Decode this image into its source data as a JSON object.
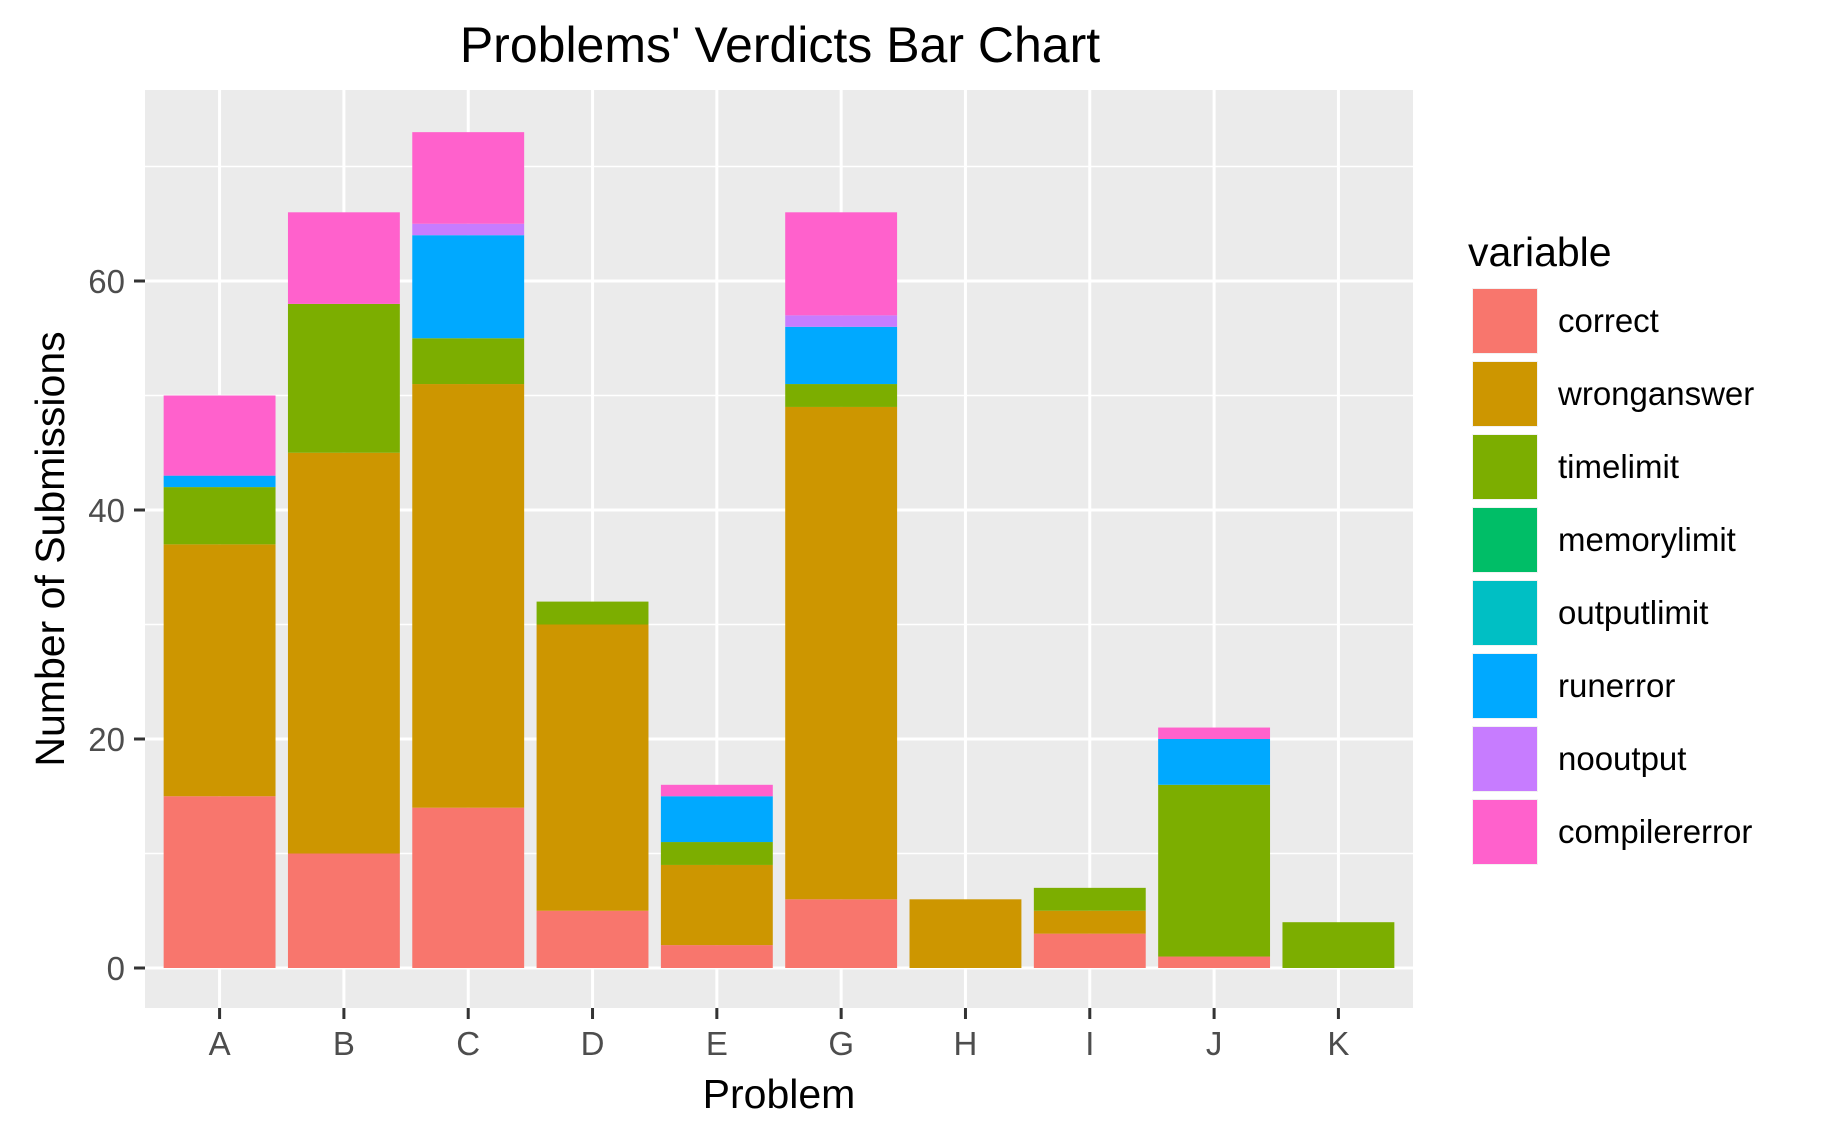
{
  "chart_data": {
    "type": "bar",
    "stacked": true,
    "title": "Problems' Verdicts Bar Chart",
    "xlabel": "Problem",
    "ylabel": "Number of Submissions",
    "categories": [
      "A",
      "B",
      "C",
      "D",
      "E",
      "G",
      "H",
      "I",
      "J",
      "K"
    ],
    "ylim": [
      0,
      75
    ],
    "yticks": [
      0,
      20,
      40,
      60
    ],
    "grid": true,
    "legend": {
      "title": "variable",
      "placement": "right"
    },
    "series": [
      {
        "name": "correct",
        "color": "#F8766D",
        "values": [
          15,
          10,
          14,
          5,
          2,
          6,
          0,
          3,
          1,
          0
        ]
      },
      {
        "name": "wronganswer",
        "color": "#CD9600",
        "values": [
          22,
          35,
          37,
          25,
          7,
          43,
          6,
          2,
          0,
          0
        ]
      },
      {
        "name": "timelimit",
        "color": "#7CAE00",
        "values": [
          5,
          13,
          4,
          2,
          2,
          2,
          0,
          2,
          15,
          4
        ]
      },
      {
        "name": "memorylimit",
        "color": "#00BE67",
        "values": [
          0,
          0,
          0,
          0,
          0,
          0,
          0,
          0,
          0,
          0
        ]
      },
      {
        "name": "outputlimit",
        "color": "#00BFC4",
        "values": [
          0,
          0,
          0,
          0,
          0,
          0,
          0,
          0,
          0,
          0
        ]
      },
      {
        "name": "runerror",
        "color": "#00A9FF",
        "values": [
          1,
          0,
          9,
          0,
          4,
          5,
          0,
          0,
          4,
          0
        ]
      },
      {
        "name": "nooutput",
        "color": "#C77CFF",
        "values": [
          0,
          0,
          1,
          0,
          0,
          1,
          0,
          0,
          0,
          0
        ]
      },
      {
        "name": "compilererror",
        "color": "#FF61CC",
        "values": [
          7,
          8,
          8,
          0,
          1,
          9,
          0,
          0,
          1,
          0
        ]
      }
    ]
  }
}
